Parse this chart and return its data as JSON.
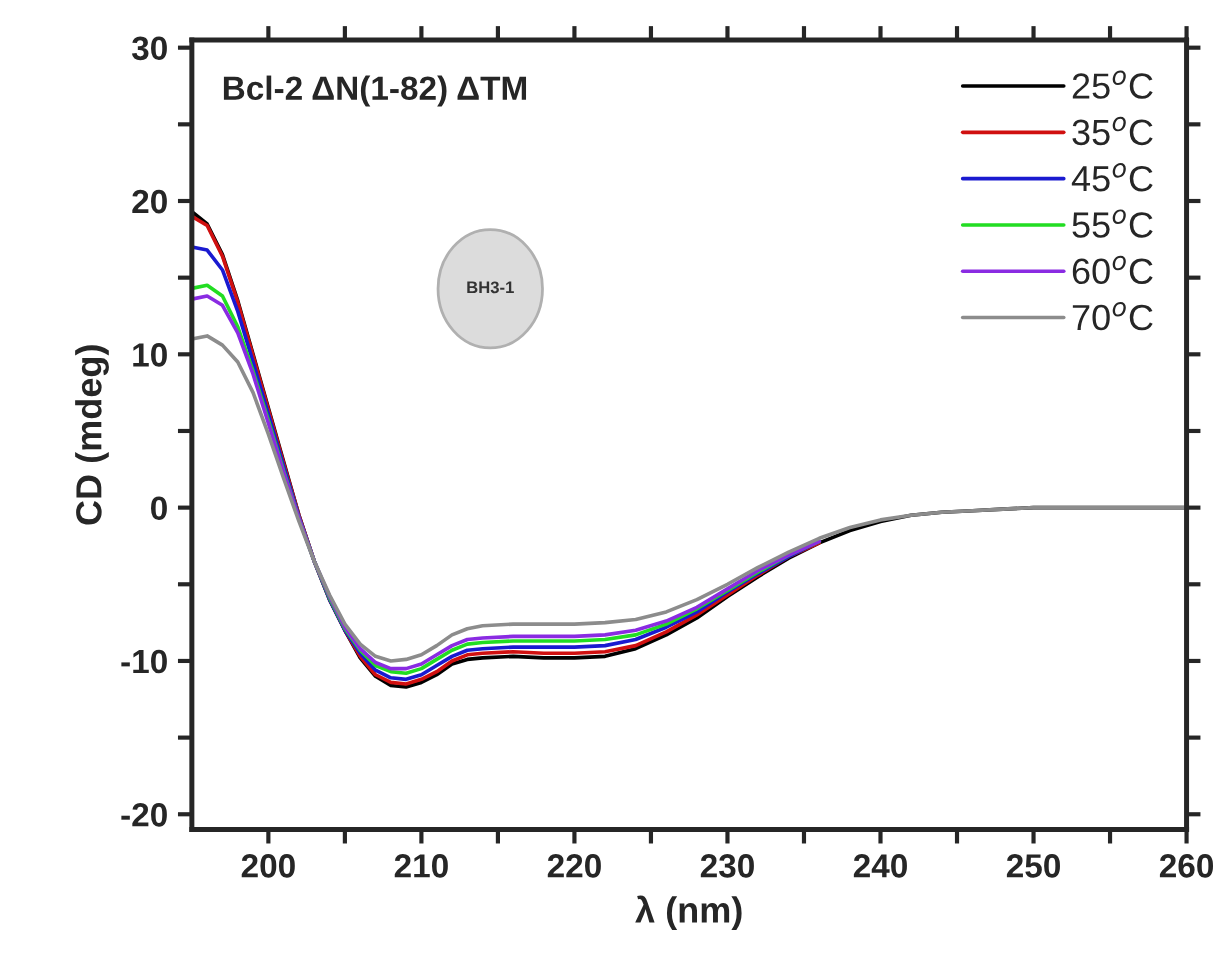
{
  "chart_data": {
    "type": "line",
    "xlabel": "λ (nm)",
    "ylabel": "CD (mdeg)",
    "annotations": [
      "Bcl-2 ΔN(1-82) ΔTM",
      "BH3-1"
    ],
    "x": [
      195,
      196,
      197,
      198,
      199,
      200,
      201,
      202,
      203,
      204,
      205,
      206,
      207,
      208,
      209,
      210,
      211,
      212,
      213,
      214,
      216,
      218,
      220,
      222,
      224,
      226,
      228,
      230,
      232,
      234,
      236,
      238,
      240,
      242,
      244,
      246,
      248,
      250,
      255,
      260
    ],
    "series": [
      {
        "name": "25$^{o}$C",
        "color": "#000000",
        "values": [
          19.3,
          18.5,
          16.5,
          13.5,
          10,
          6.5,
          3,
          -0.5,
          -3.5,
          -6,
          -8,
          -9.8,
          -11,
          -11.6,
          -11.7,
          -11.4,
          -10.9,
          -10.2,
          -9.9,
          -9.8,
          -9.7,
          -9.8,
          -9.8,
          -9.7,
          -9.2,
          -8.3,
          -7.2,
          -5.8,
          -4.5,
          -3.3,
          -2.3,
          -1.5,
          -0.9,
          -0.5,
          -0.3,
          -0.2,
          -0.1,
          0,
          0,
          0
        ]
      },
      {
        "name": "35$^{o}$C",
        "color": "#d01010",
        "values": [
          19.0,
          18.4,
          16.4,
          13.4,
          9.9,
          6.4,
          2.9,
          -0.5,
          -3.5,
          -6,
          -8,
          -9.7,
          -10.9,
          -11.4,
          -11.5,
          -11.2,
          -10.7,
          -10.0,
          -9.6,
          -9.5,
          -9.4,
          -9.5,
          -9.5,
          -9.4,
          -9.0,
          -8.1,
          -7.0,
          -5.7,
          -4.4,
          -3.2,
          -2.3,
          null,
          null,
          null,
          null,
          null,
          null,
          null,
          null,
          null
        ]
      },
      {
        "name": "45$^{o}$C",
        "color": "#1a1ad0",
        "values": [
          17.0,
          16.8,
          15.5,
          12.8,
          9.5,
          6.1,
          2.7,
          -0.6,
          -3.5,
          -6,
          -8,
          -9.5,
          -10.6,
          -11.1,
          -11.2,
          -10.9,
          -10.3,
          -9.7,
          -9.3,
          -9.2,
          -9.1,
          -9.1,
          -9.1,
          -9.0,
          -8.6,
          -7.8,
          -6.8,
          -5.5,
          -4.3,
          -3.2,
          -2.2,
          null,
          null,
          null,
          null,
          null,
          null,
          null,
          null,
          null
        ]
      },
      {
        "name": "55$^{o}$C",
        "color": "#22dd22",
        "values": [
          14.3,
          14.5,
          13.8,
          11.8,
          8.9,
          5.7,
          2.4,
          -0.7,
          -3.5,
          -5.9,
          -7.9,
          -9.3,
          -10.3,
          -10.7,
          -10.8,
          -10.5,
          -9.9,
          -9.3,
          -8.9,
          -8.8,
          -8.7,
          -8.7,
          -8.7,
          -8.6,
          -8.3,
          -7.6,
          -6.6,
          -5.4,
          -4.2,
          -3.1,
          -2.2,
          null,
          null,
          null,
          null,
          null,
          null,
          null,
          null,
          null
        ]
      },
      {
        "name": "60$^{o}$C",
        "color": "#8a2be2",
        "values": [
          13.6,
          13.8,
          13.2,
          11.4,
          8.7,
          5.5,
          2.3,
          -0.7,
          -3.5,
          -5.8,
          -7.8,
          -9.2,
          -10.1,
          -10.5,
          -10.5,
          -10.2,
          -9.6,
          -9.0,
          -8.6,
          -8.5,
          -8.4,
          -8.4,
          -8.4,
          -8.3,
          -8.0,
          -7.4,
          -6.5,
          -5.3,
          -4.1,
          -3.1,
          -2.2,
          null,
          null,
          null,
          null,
          null,
          null,
          null,
          null,
          null
        ]
      },
      {
        "name": "70$^{o}$C",
        "color": "#8c8c8c",
        "values": [
          11.0,
          11.2,
          10.6,
          9.5,
          7.5,
          4.8,
          1.9,
          -0.9,
          -3.5,
          -5.7,
          -7.6,
          -8.9,
          -9.7,
          -10.0,
          -9.9,
          -9.6,
          -9.0,
          -8.3,
          -7.9,
          -7.7,
          -7.6,
          -7.6,
          -7.6,
          -7.5,
          -7.3,
          -6.8,
          -6.0,
          -5.0,
          -3.9,
          -2.9,
          -2.0,
          -1.3,
          -0.8,
          -0.5,
          -0.3,
          -0.2,
          -0.1,
          0,
          0,
          0
        ]
      }
    ],
    "xlim": [
      195,
      260
    ],
    "xticks": [
      200,
      {
        "value": 205,
        "label": null
      },
      210,
      {
        "value": 215,
        "label": null
      },
      220,
      {
        "value": 225,
        "label": null
      },
      230,
      {
        "value": 235,
        "label": null
      },
      240,
      {
        "value": 245,
        "label": null
      },
      250,
      {
        "value": 255,
        "label": null
      },
      260
    ],
    "ylim": [
      -21,
      30.5
    ],
    "yticks": [
      -20,
      {
        "value": -15,
        "label": null
      },
      -10,
      {
        "value": -5,
        "label": null
      },
      0,
      {
        "value": 5,
        "label": null
      },
      10,
      {
        "value": 15,
        "label": null
      },
      20,
      {
        "value": 25,
        "label": null
      },
      30
    ],
    "grid": false,
    "legend": "top right",
    "marker": "none",
    "line_style": "solid"
  }
}
